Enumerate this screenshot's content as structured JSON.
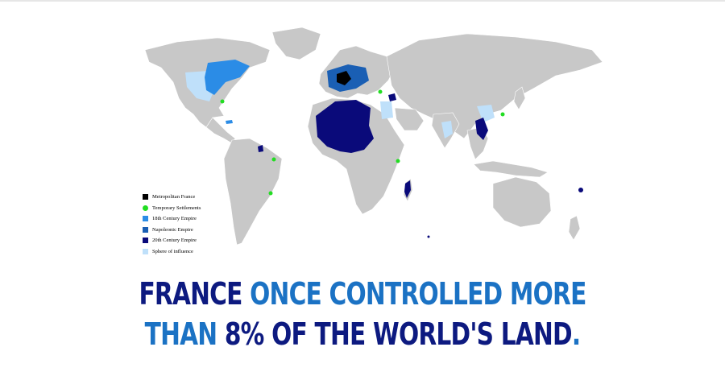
{
  "colors": {
    "land": "#c8c8c8",
    "metropolitan": "#000000",
    "settlement": "#22dd22",
    "century18": "#2b8ce6",
    "napoleonic": "#1a5fb4",
    "century20": "#0a0a7a",
    "influence": "#bfe0fa",
    "headline_dark": "#0d1a80",
    "headline_blue": "#1b72c4"
  },
  "legend": [
    {
      "label": "Metropolitan France",
      "color": "#000000",
      "shape": "square"
    },
    {
      "label": "Temporary Settlements",
      "color": "#22dd22",
      "shape": "dot"
    },
    {
      "label": "18th Century Empire",
      "color": "#2b8ce6",
      "shape": "square"
    },
    {
      "label": "Napoleonic Empire",
      "color": "#1a5fb4",
      "shape": "square"
    },
    {
      "label": "20th Century Empire",
      "color": "#0a0a7a",
      "shape": "square"
    },
    {
      "label": "Sphere of influence",
      "color": "#bfe0fa",
      "shape": "square"
    }
  ],
  "headline": {
    "line1": [
      {
        "text": "FRANCE ",
        "color": "#0d1a80"
      },
      {
        "text": "ONCE CONTROLLED MORE",
        "color": "#1b72c4"
      }
    ],
    "line2": [
      {
        "text": "THAN ",
        "color": "#1b72c4"
      },
      {
        "text": "8% OF THE WORLD'S LAND",
        "color": "#0d1a80"
      },
      {
        "text": ".",
        "color": "#1b72c4"
      }
    ]
  }
}
